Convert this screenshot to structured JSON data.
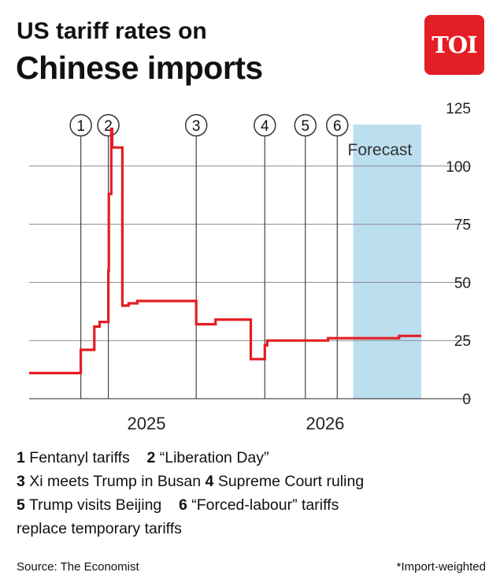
{
  "title_line1": "US tariff rates on",
  "title_line2": "Chinese imports",
  "logo_text": "TOI",
  "chart_data": {
    "type": "line",
    "series": [
      {
        "color": "#e31e24",
        "x": [
          "2024-10-20",
          "2025-02-04",
          "2025-02-04",
          "2025-03-04",
          "2025-03-04",
          "2025-03-15",
          "2025-03-15",
          "2025-04-02",
          "2025-04-02",
          "2025-04-03",
          "2025-04-03",
          "2025-04-08",
          "2025-04-08",
          "2025-04-10",
          "2025-04-10",
          "2025-05-01",
          "2025-05-01",
          "2025-05-14",
          "2025-05-14",
          "2025-06-01",
          "2025-06-01",
          "2025-10-01",
          "2025-10-01",
          "2025-11-10",
          "2025-11-10",
          "2026-01-22",
          "2026-01-22",
          "2026-02-20",
          "2026-02-20",
          "2026-02-25",
          "2026-02-25",
          "2026-04-01",
          "2026-04-01",
          "2026-07-01",
          "2026-07-01",
          "2026-11-25",
          "2026-11-25",
          "2027-01-10"
        ],
        "y": [
          11,
          11,
          21,
          21,
          31,
          31,
          33,
          33,
          55,
          55,
          88,
          88,
          116,
          116,
          108,
          108,
          40,
          40,
          41,
          41,
          42,
          42,
          32,
          32,
          34,
          34,
          17,
          17,
          23,
          23,
          25,
          25,
          25,
          25,
          26,
          26,
          27,
          27
        ]
      }
    ],
    "events": [
      {
        "label": "1",
        "x": "2025-02-04"
      },
      {
        "label": "2",
        "x": "2025-04-02"
      },
      {
        "label": "3",
        "x": "2025-10-01"
      },
      {
        "label": "4",
        "x": "2026-02-20"
      },
      {
        "label": "5",
        "x": "2026-05-15"
      },
      {
        "label": "6",
        "x": "2026-07-20"
      }
    ],
    "forecast_range": [
      "2026-08-22",
      "2027-01-10"
    ],
    "forecast_label": "Forecast",
    "forecast_color": "#bcdff0",
    "x_ticks": [
      {
        "label": "2025",
        "x": "2025-06-20"
      },
      {
        "label": "2026",
        "x": "2026-06-25"
      }
    ],
    "y_ticks": [
      "0",
      "25",
      "50",
      "75",
      "100",
      "125"
    ],
    "ylim": [
      0,
      125
    ],
    "grid": "horizontal"
  },
  "legend": {
    "row1": [
      {
        "num": "1",
        "text": "Fentanyl tariffs"
      },
      {
        "num": "2",
        "text": "“Liberation Day”"
      }
    ],
    "row2": [
      {
        "num": "3",
        "text": "Xi meets Trump in Busan"
      },
      {
        "num": "4",
        "text": "Supreme Court ruling"
      }
    ],
    "row3": [
      {
        "num": "5",
        "text": "Trump visits Beijing"
      },
      {
        "num": "6",
        "text": "“Forced-labour” tariffs"
      }
    ],
    "row4": "replace temporary tariffs"
  },
  "source": "Source: The Economist",
  "footnote": "*Import-weighted"
}
